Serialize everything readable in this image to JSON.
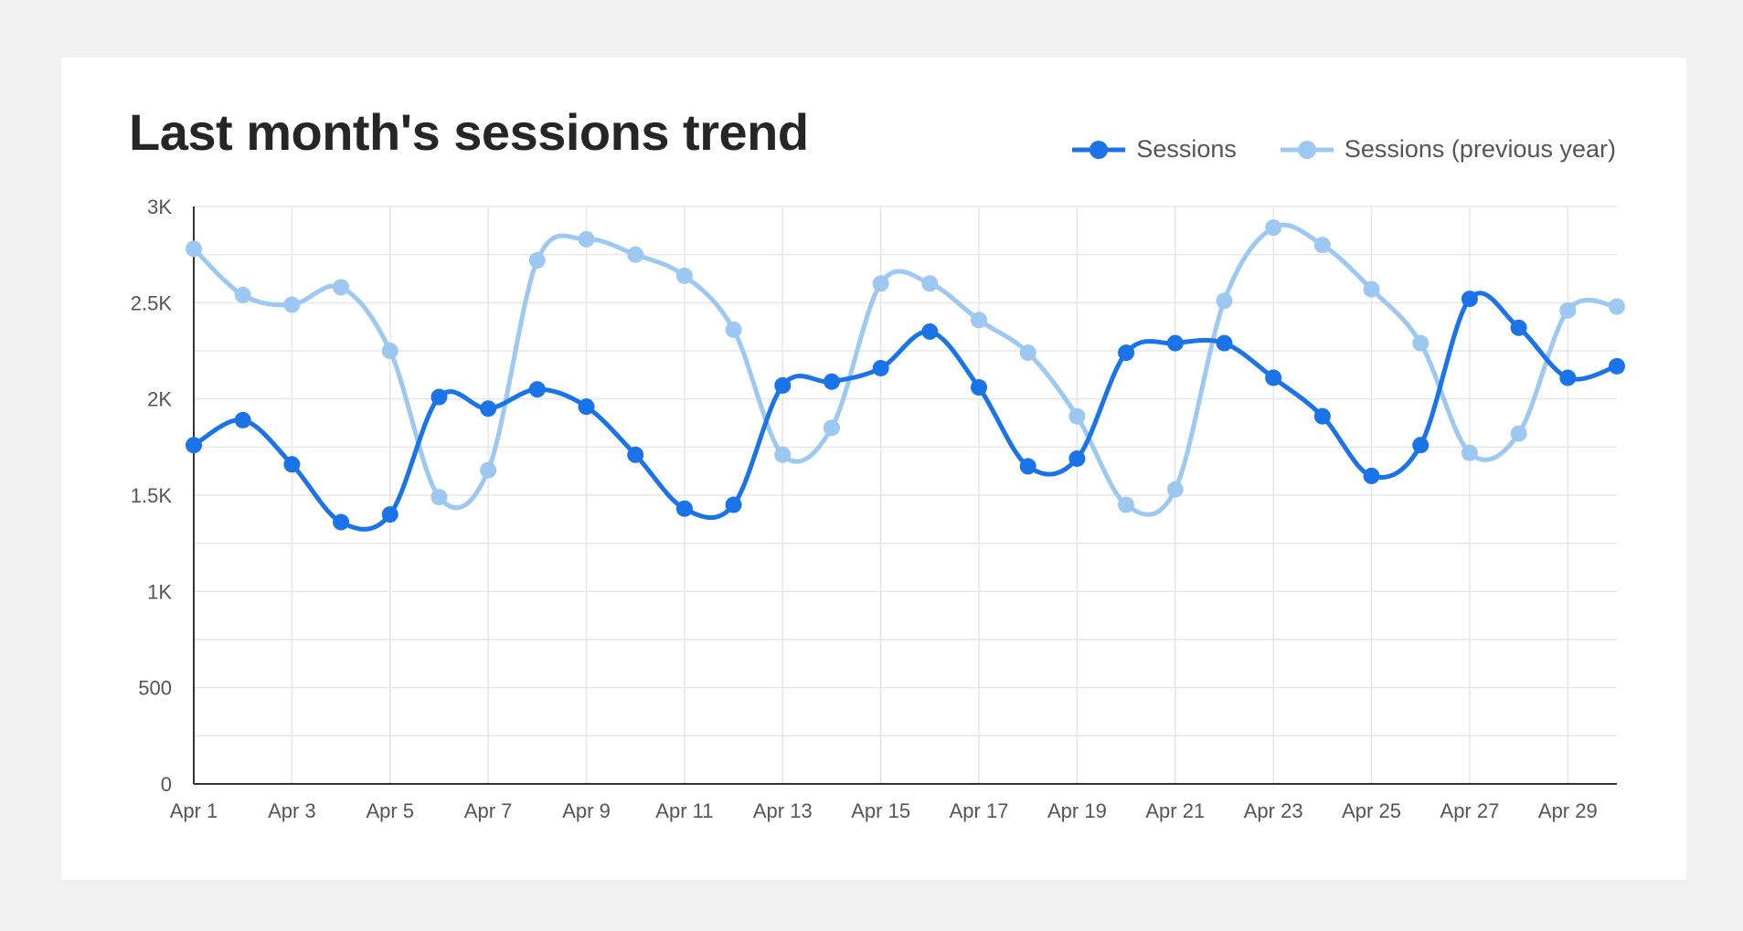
{
  "colors": {
    "background": "#f1f1f1",
    "card": "#ffffff",
    "sessions": "#1a73e8",
    "sessions_previous_year": "#9cc8f1",
    "grid": "#e6e6e6",
    "axis": "#333333",
    "text": "#555555"
  },
  "chart_data": {
    "type": "line",
    "title": "Last month's sessions trend",
    "xlabel": "",
    "ylabel": "",
    "ylim": [
      0,
      3000
    ],
    "y_ticks": [
      0,
      500,
      1000,
      1500,
      2000,
      2500,
      3000
    ],
    "y_tick_labels": [
      "0",
      "500",
      "1K",
      "1.5K",
      "2K",
      "2.5K",
      "3K"
    ],
    "x": [
      "Apr 1",
      "Apr 2",
      "Apr 3",
      "Apr 4",
      "Apr 5",
      "Apr 6",
      "Apr 7",
      "Apr 8",
      "Apr 9",
      "Apr 10",
      "Apr 11",
      "Apr 12",
      "Apr 13",
      "Apr 14",
      "Apr 15",
      "Apr 16",
      "Apr 17",
      "Apr 18",
      "Apr 19",
      "Apr 20",
      "Apr 21",
      "Apr 22",
      "Apr 23",
      "Apr 24",
      "Apr 25",
      "Apr 26",
      "Apr 27",
      "Apr 28",
      "Apr 29",
      "Apr 30"
    ],
    "x_tick_labels": [
      "Apr 1",
      "Apr 3",
      "Apr 5",
      "Apr 7",
      "Apr 9",
      "Apr 11",
      "Apr 13",
      "Apr 15",
      "Apr 17",
      "Apr 19",
      "Apr 21",
      "Apr 23",
      "Apr 25",
      "Apr 27",
      "Apr 29"
    ],
    "grid": true,
    "legend_position": "top-right",
    "series": [
      {
        "name": "Sessions",
        "color": "#1a73e8",
        "values": [
          1760,
          1890,
          1660,
          1360,
          1400,
          2010,
          1950,
          2050,
          1960,
          1710,
          1430,
          1450,
          2070,
          2090,
          2160,
          2350,
          2060,
          1650,
          1690,
          2240,
          2290,
          2290,
          2110,
          1910,
          1600,
          1760,
          2520,
          2370,
          2110,
          2170
        ]
      },
      {
        "name": "Sessions (previous year)",
        "color": "#9cc8f1",
        "values": [
          2780,
          2540,
          2490,
          2580,
          2250,
          1490,
          1630,
          2720,
          2830,
          2750,
          2640,
          2360,
          1710,
          1850,
          2600,
          2600,
          2410,
          2240,
          1910,
          1450,
          1530,
          2510,
          2890,
          2800,
          2570,
          2290,
          1720,
          1820,
          2460,
          2480
        ]
      }
    ]
  }
}
